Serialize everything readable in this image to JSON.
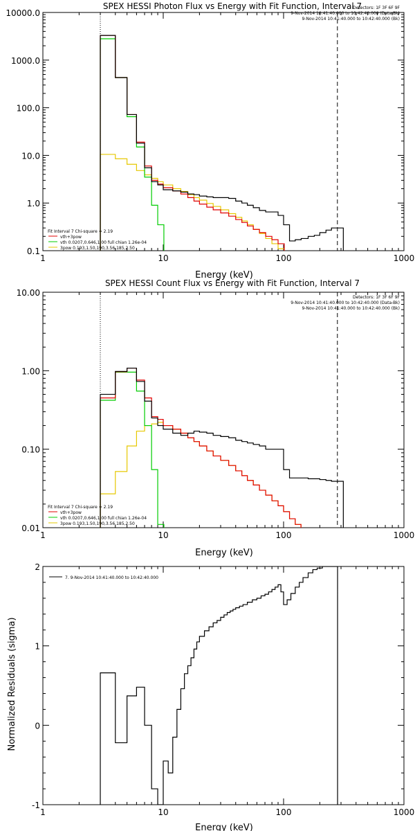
{
  "chart_data": [
    {
      "type": "line",
      "title": "SPEX HESSI Photon Flux vs Energy with Fit Function, Interval 7",
      "xlabel": "Energy (keV)",
      "ylabel": "",
      "xscale": "log",
      "yscale": "log",
      "xlim": [
        1,
        1000
      ],
      "ylim": [
        0.1,
        10000
      ],
      "xticks": [
        {
          "value": 1,
          "label": "1"
        },
        {
          "value": 10,
          "label": "10"
        },
        {
          "value": 100,
          "label": "100"
        },
        {
          "value": 1000,
          "label": "1000"
        }
      ],
      "yticks": [
        {
          "value": 0.1,
          "label": "0.1"
        },
        {
          "value": 1,
          "label": "1.0"
        },
        {
          "value": 10,
          "label": "10.0"
        },
        {
          "value": 100,
          "label": "100.0"
        },
        {
          "value": 1000,
          "label": "1000.0"
        },
        {
          "value": 10000,
          "label": "10000.0"
        }
      ],
      "vlines": [
        {
          "x": 3,
          "style": "dotted"
        },
        {
          "x": 280,
          "style": "dashed"
        }
      ],
      "header_lines": [
        "Detectors: 1F 3F 6F 9F",
        "9-Nov-2014 10:41:40.000 to 10:42:40.000 (Data-Bk)",
        "9-Nov-2014 10:41:40.000 to 10:42:40.000 (Bk)"
      ],
      "legend_title": "Fit Interval  7    Chi-square = 2.19",
      "legend": [
        {
          "label": "vth+3pow",
          "color": "#e00000"
        },
        {
          "label": "vth 0.0207,0.646,1.00   full chian 1.26e-04",
          "color": "#00cc00"
        },
        {
          "label": "3pow 0.193,1.50,190,3.56,185,2.50",
          "color": "#e6c800"
        }
      ],
      "series": [
        {
          "name": "Data-Bk",
          "color": "#000000",
          "step": true,
          "x": [
            3,
            4,
            5,
            6,
            7,
            8,
            9,
            10,
            12,
            14,
            16,
            18,
            20,
            23,
            26,
            30,
            35,
            40,
            45,
            50,
            56,
            63,
            71,
            80,
            90,
            100,
            112,
            125,
            140,
            160,
            180,
            200,
            225,
            250,
            280
          ],
          "y": [
            3300,
            430,
            72,
            18,
            5.5,
            2.8,
            2.4,
            1.9,
            1.8,
            1.7,
            1.55,
            1.5,
            1.4,
            1.35,
            1.3,
            1.3,
            1.25,
            1.1,
            1.0,
            0.9,
            0.8,
            0.7,
            0.65,
            0.65,
            0.55,
            0.35,
            0.16,
            0.17,
            0.18,
            0.2,
            0.21,
            0.24,
            0.27,
            0.3,
            0.3
          ]
        },
        {
          "name": "vth+3pow",
          "color": "#e00000",
          "step": true,
          "x": [
            3,
            4,
            5,
            6,
            7,
            8,
            9,
            10,
            12,
            14,
            16,
            18,
            20,
            23,
            26,
            30,
            35,
            40,
            45,
            50,
            56,
            63,
            71,
            80,
            90
          ],
          "y": [
            3300,
            430,
            72,
            19,
            6,
            3.0,
            2.5,
            2.1,
            1.8,
            1.55,
            1.3,
            1.1,
            0.95,
            0.82,
            0.72,
            0.62,
            0.53,
            0.45,
            0.39,
            0.33,
            0.28,
            0.24,
            0.2,
            0.17,
            0.14
          ]
        },
        {
          "name": "vth",
          "color": "#00cc00",
          "step": true,
          "x": [
            3,
            4,
            5,
            6,
            7,
            8,
            9
          ],
          "y": [
            2800,
            430,
            65,
            15,
            3.5,
            0.9,
            0.35
          ]
        },
        {
          "name": "3pow",
          "color": "#e6c800",
          "step": true,
          "x": [
            3,
            4,
            5,
            6,
            7,
            8,
            9,
            10,
            12,
            14,
            16,
            18,
            20,
            23,
            26,
            30,
            35,
            40,
            45,
            50,
            56,
            63,
            71,
            80,
            90
          ],
          "y": [
            10.5,
            8.5,
            6.5,
            4.8,
            3.9,
            3.3,
            2.8,
            2.4,
            2.0,
            1.75,
            1.5,
            1.3,
            1.15,
            0.98,
            0.85,
            0.72,
            0.6,
            0.5,
            0.42,
            0.35,
            0.28,
            0.23,
            0.18,
            0.14,
            0.11
          ]
        }
      ]
    },
    {
      "type": "line",
      "title": "SPEX HESSI Count Flux vs Energy with Fit Function, Interval 7",
      "xlabel": "Energy (keV)",
      "ylabel": "",
      "xscale": "log",
      "yscale": "log",
      "xlim": [
        1,
        1000
      ],
      "ylim": [
        0.01,
        10
      ],
      "xticks": [
        {
          "value": 1,
          "label": "1"
        },
        {
          "value": 10,
          "label": "10"
        },
        {
          "value": 100,
          "label": "100"
        },
        {
          "value": 1000,
          "label": "1000"
        }
      ],
      "yticks": [
        {
          "value": 0.01,
          "label": "0.01"
        },
        {
          "value": 0.1,
          "label": "0.10"
        },
        {
          "value": 1,
          "label": "1.00"
        },
        {
          "value": 10,
          "label": "10.00"
        }
      ],
      "vlines": [
        {
          "x": 3,
          "style": "dotted"
        },
        {
          "x": 280,
          "style": "dashed"
        }
      ],
      "header_lines": [
        "Detectors: 1F 3F 6F 9F",
        "9-Nov-2014 10:41:40.000 to 10:42:40.000 (Data-Bk)",
        "9-Nov-2014 10:41:40.000 to 10:42:40.000 (Bk)"
      ],
      "legend_title": "Fit Interval  7    Chi-square = 2.19",
      "legend": [
        {
          "label": "vth+3pow",
          "color": "#e00000"
        },
        {
          "label": "vth 0.0207,0.646,1.00   full chian 1.26e-04",
          "color": "#00cc00"
        },
        {
          "label": "3pow 0.193,1.50,190,3.56,185,2.50",
          "color": "#e6c800"
        }
      ],
      "series": [
        {
          "name": "Data-Bk",
          "color": "#000000",
          "step": true,
          "x": [
            3,
            4,
            5,
            6,
            7,
            8,
            9,
            10,
            12,
            14,
            16,
            18,
            20,
            23,
            26,
            30,
            35,
            40,
            45,
            50,
            56,
            63,
            71,
            80,
            90,
            100,
            112,
            125,
            140,
            160,
            180,
            200,
            225,
            250,
            280
          ],
          "y": [
            0.5,
            0.98,
            1.08,
            0.73,
            0.41,
            0.25,
            0.2,
            0.18,
            0.16,
            0.15,
            0.16,
            0.17,
            0.165,
            0.16,
            0.15,
            0.145,
            0.14,
            0.13,
            0.125,
            0.12,
            0.115,
            0.11,
            0.1,
            0.1,
            0.1,
            0.055,
            0.043,
            0.043,
            0.043,
            0.042,
            0.042,
            0.041,
            0.04,
            0.039,
            0.039
          ]
        },
        {
          "name": "vth+3pow",
          "color": "#e00000",
          "step": true,
          "x": [
            3,
            4,
            5,
            6,
            7,
            8,
            9,
            10,
            12,
            14,
            16,
            18,
            20,
            23,
            26,
            30,
            35,
            40,
            45,
            50,
            56,
            63,
            71,
            80,
            90,
            100,
            112,
            125
          ],
          "y": [
            0.45,
            0.97,
            1.08,
            0.76,
            0.45,
            0.26,
            0.24,
            0.2,
            0.18,
            0.16,
            0.14,
            0.125,
            0.11,
            0.095,
            0.082,
            0.072,
            0.062,
            0.053,
            0.046,
            0.04,
            0.035,
            0.03,
            0.026,
            0.022,
            0.019,
            0.016,
            0.013,
            0.011
          ]
        },
        {
          "name": "vth",
          "color": "#00cc00",
          "step": true,
          "x": [
            3,
            4,
            5,
            6,
            7,
            8,
            9
          ],
          "y": [
            0.42,
            0.96,
            0.96,
            0.55,
            0.2,
            0.055,
            0.011
          ]
        },
        {
          "name": "3pow",
          "color": "#e6c800",
          "step": true,
          "x": [
            3,
            4,
            5,
            6,
            7,
            8,
            9,
            10,
            12,
            14,
            16,
            18,
            20,
            23,
            26,
            30,
            35,
            40,
            45,
            50,
            56,
            63,
            71,
            80,
            90,
            100,
            112,
            125
          ],
          "y": [
            0.027,
            0.052,
            0.11,
            0.17,
            0.2,
            0.21,
            0.22,
            0.2,
            0.18,
            0.16,
            0.14,
            0.125,
            0.11,
            0.095,
            0.082,
            0.072,
            0.062,
            0.053,
            0.046,
            0.04,
            0.035,
            0.03,
            0.026,
            0.022,
            0.019,
            0.016,
            0.013,
            0.011
          ]
        }
      ]
    },
    {
      "type": "line",
      "title": "",
      "xlabel": "Energy (keV)",
      "ylabel": "Normalized Residuals (sigma)",
      "xscale": "log",
      "yscale": "linear",
      "xlim": [
        1,
        1000
      ],
      "ylim": [
        -1,
        2
      ],
      "xticks": [
        {
          "value": 1,
          "label": "1"
        },
        {
          "value": 10,
          "label": "10"
        },
        {
          "value": 100,
          "label": "100"
        },
        {
          "value": 1000,
          "label": "1000"
        }
      ],
      "yticks": [
        {
          "value": -1,
          "label": "-1"
        },
        {
          "value": 0,
          "label": "0"
        },
        {
          "value": 1,
          "label": "1"
        },
        {
          "value": 2,
          "label": "2"
        }
      ],
      "vlines": [],
      "header_lines": [],
      "legend_title": "",
      "legend": [
        {
          "label": "7.  9-Nov-2014 10:41:40.000 to 10:42:40.000",
          "color": "#000000"
        }
      ],
      "series": [
        {
          "name": "7.  9-Nov-2014 10:41:40.000 to 10:42:40.000",
          "color": "#000000",
          "step": true,
          "x": [
            3,
            4,
            5,
            6,
            7,
            8,
            9,
            10,
            11,
            12,
            13,
            14,
            15,
            16,
            17,
            18,
            19,
            20,
            22,
            24,
            26,
            28,
            30,
            32,
            34,
            36,
            38,
            40,
            43,
            46,
            50,
            55,
            60,
            65,
            70,
            75,
            80,
            85,
            90,
            95,
            100,
            107,
            115,
            125,
            135,
            145,
            160,
            175,
            190,
            210,
            230,
            250,
            265
          ],
          "y": [
            0.66,
            -0.22,
            0.37,
            0.48,
            0,
            -0.8,
            -1.05,
            -0.45,
            -0.6,
            -0.15,
            0.2,
            0.46,
            0.65,
            0.75,
            0.85,
            0.96,
            1.05,
            1.12,
            1.19,
            1.24,
            1.29,
            1.32,
            1.36,
            1.39,
            1.42,
            1.44,
            1.46,
            1.48,
            1.5,
            1.52,
            1.55,
            1.58,
            1.6,
            1.63,
            1.65,
            1.68,
            1.71,
            1.74,
            1.77,
            1.68,
            1.52,
            1.58,
            1.66,
            1.74,
            1.8,
            1.86,
            1.92,
            1.96,
            1.98,
            2.0,
            2.02,
            2.04,
            2.04
          ]
        }
      ]
    }
  ]
}
